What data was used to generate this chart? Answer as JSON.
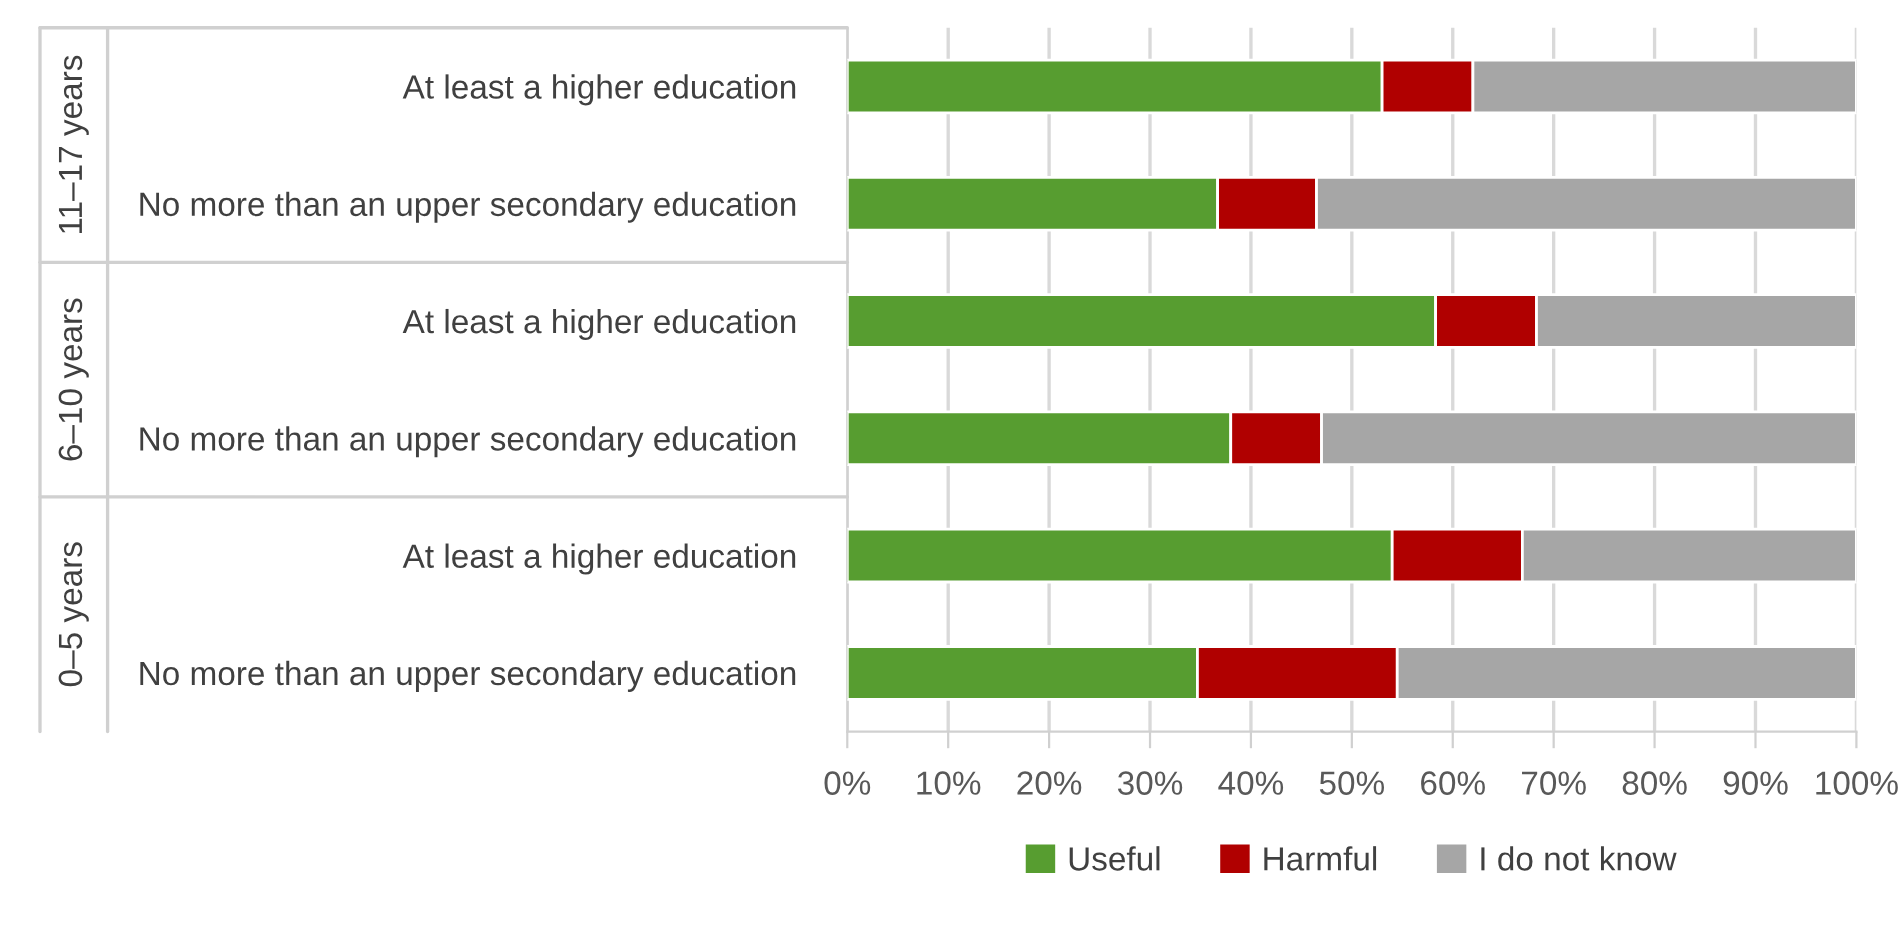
{
  "chart_data": {
    "type": "bar",
    "orientation": "horizontal",
    "stacked": true,
    "categories": [
      "At least a higher education",
      "No more than an upper secondary education",
      "At least a higher education",
      "No more than an upper secondary education",
      "At least a higher education",
      "No more than an upper secondary education"
    ],
    "annotations": [
      "11–17 years",
      "6–10 years",
      "0–5 years"
    ],
    "series": [
      {
        "name": "Useful",
        "color": "#579d30",
        "values": [
          53,
          36.7,
          58.3,
          38,
          54,
          34.7
        ]
      },
      {
        "name": "Harmful",
        "color": "#b00000",
        "values": [
          9,
          9.8,
          10,
          9,
          12.9,
          19.8
        ]
      },
      {
        "name": "I do not know",
        "color": "#a6a6a6",
        "values": [
          38,
          53.5,
          31.7,
          53,
          33.1,
          45.5
        ]
      }
    ],
    "xlim": [
      0,
      100
    ],
    "xticks": [
      {
        "value": 0,
        "label": "0%"
      },
      {
        "value": 10,
        "label": "10%"
      },
      {
        "value": 20,
        "label": "20%"
      },
      {
        "value": 30,
        "label": "30%"
      },
      {
        "value": 40,
        "label": "40%"
      },
      {
        "value": 50,
        "label": "50%"
      },
      {
        "value": 60,
        "label": "60%"
      },
      {
        "value": 70,
        "label": "70%"
      },
      {
        "value": 80,
        "label": "80%"
      },
      {
        "value": 90,
        "label": "90%"
      },
      {
        "value": 100,
        "label": "100%"
      }
    ],
    "grid": "x",
    "legend": "bottom"
  }
}
